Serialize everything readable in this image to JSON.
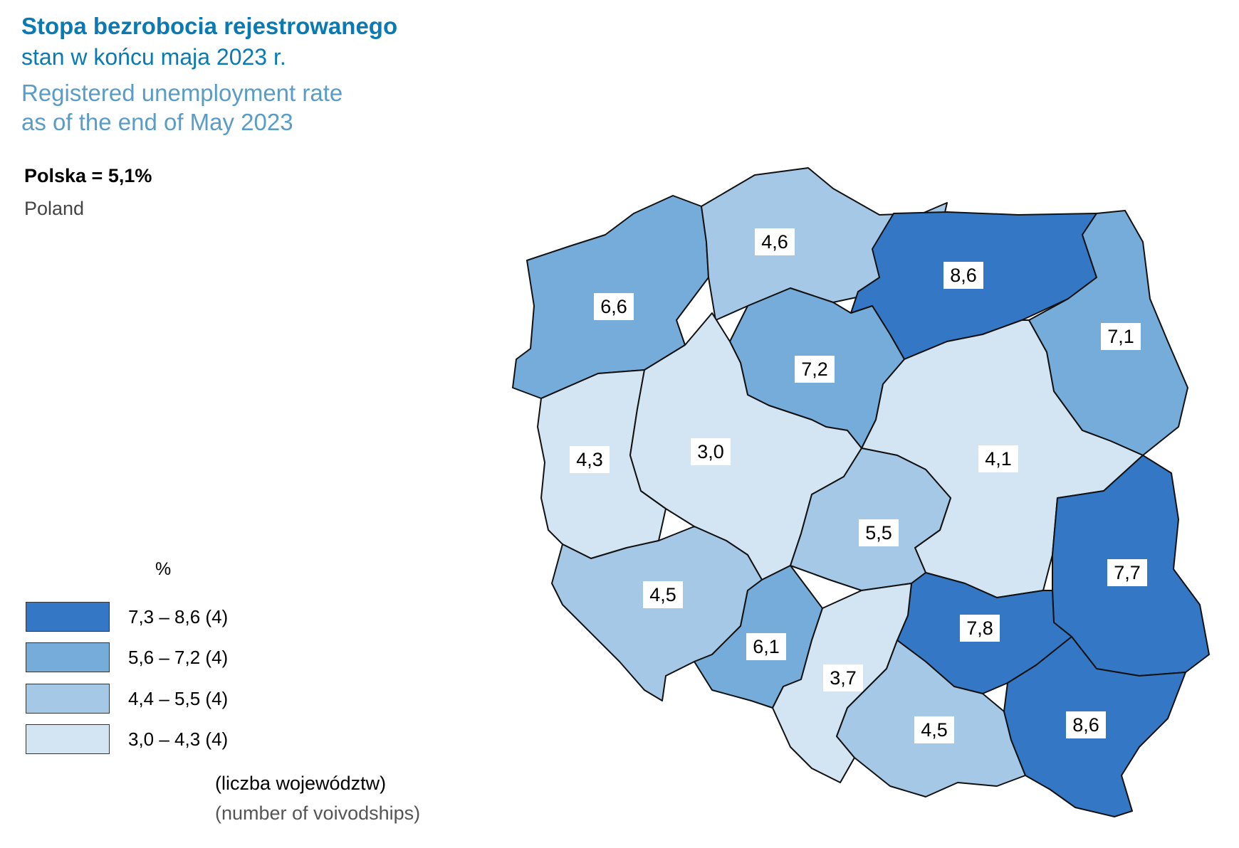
{
  "title": {
    "pl_bold": "Stopa bezrobocia rejestrowanego",
    "pl": "stan w końcu maja 2023 r.",
    "en_line1": "Registered unemployment rate",
    "en_line2": "as of the end of May 2023"
  },
  "national": {
    "label": "Polska = 5,1%",
    "label_en": "Poland",
    "value": 5.1
  },
  "legend": {
    "unit": "%",
    "classes": [
      {
        "label": "7,3 – 8,6  (4)",
        "color": "#3477c4"
      },
      {
        "label": "5,6 – 7,2  (4)",
        "color": "#76acd9"
      },
      {
        "label": "4,4 – 5,5  (4)",
        "color": "#a5c8e6"
      },
      {
        "label": "3,0 – 4,3  (4)",
        "color": "#d3e4f3"
      }
    ],
    "note_pl": "(liczba województw)",
    "note_en": "(number of voivodships)"
  },
  "regions": [
    {
      "id": "zachodniopomorskie",
      "label": "6,6",
      "value": 6.6,
      "class": 1
    },
    {
      "id": "pomorskie",
      "label": "4,6",
      "value": 4.6,
      "class": 2
    },
    {
      "id": "warminsko-mazurskie",
      "label": "8,6",
      "value": 8.6,
      "class": 0
    },
    {
      "id": "podlaskie",
      "label": "7,1",
      "value": 7.1,
      "class": 1
    },
    {
      "id": "kujawsko-pomorskie",
      "label": "7,2",
      "value": 7.2,
      "class": 1
    },
    {
      "id": "lubuskie",
      "label": "4,3",
      "value": 4.3,
      "class": 3
    },
    {
      "id": "wielkopolskie",
      "label": "3,0",
      "value": 3.0,
      "class": 3
    },
    {
      "id": "mazowieckie",
      "label": "4,1",
      "value": 4.1,
      "class": 3
    },
    {
      "id": "lodzkie",
      "label": "5,5",
      "value": 5.5,
      "class": 2
    },
    {
      "id": "lubelskie",
      "label": "7,7",
      "value": 7.7,
      "class": 0
    },
    {
      "id": "dolnoslaskie",
      "label": "4,5",
      "value": 4.5,
      "class": 2
    },
    {
      "id": "opolskie",
      "label": "6,1",
      "value": 6.1,
      "class": 1
    },
    {
      "id": "swietokrzyskie",
      "label": "7,8",
      "value": 7.8,
      "class": 0
    },
    {
      "id": "slaskie",
      "label": "3,7",
      "value": 3.7,
      "class": 3
    },
    {
      "id": "malopolskie",
      "label": "4,5",
      "value": 4.5,
      "class": 2
    },
    {
      "id": "podkarpackie",
      "label": "8,6",
      "value": 8.6,
      "class": 0
    }
  ]
}
